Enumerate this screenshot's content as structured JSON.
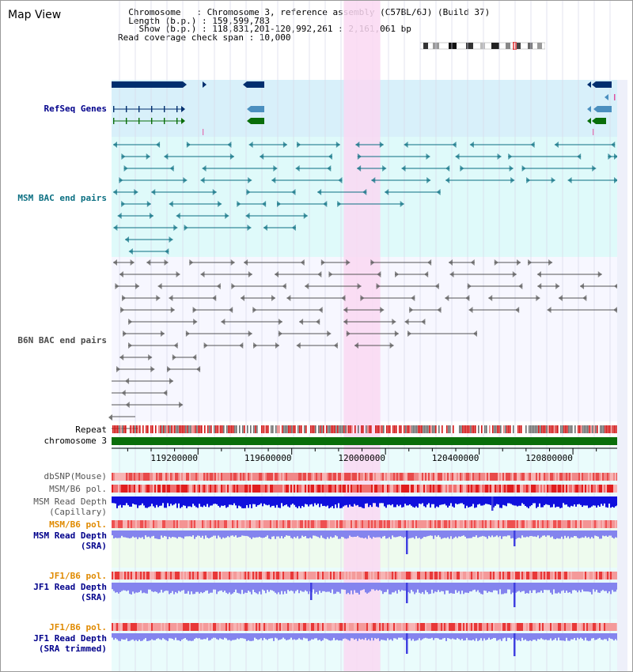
{
  "app": {
    "title": "Map View"
  },
  "info": {
    "line1": "  Chromosome   : Chromosome 3, reference assembly (C57BL/6J) (Build 37)",
    "line2": "  Length (b.p.) : 159,599,783",
    "line3": "    Show (b.p.) : 118,831,201-120,992,261 : 2,161,061 bp",
    "line4": "Read coverage check span : 10,000"
  },
  "tracks": {
    "refseq": "RefSeq Genes",
    "msm_bac": "MSM BAC end pairs",
    "b6n_bac": "B6N BAC end pairs",
    "repeat": "Repeat",
    "chromosome": "chromosome 3",
    "dbsnp": "dbSNP(Mouse)",
    "msm_b6_pol": "MSM/B6 pol.",
    "msm_read_cap_1": "MSM Read Depth",
    "msm_read_cap_2": "(Capillary)",
    "msm_b6_pol_sra": "MSM/B6 pol.",
    "msm_read_sra_1": "MSM Read Depth",
    "msm_read_sra_2": "(SRA)",
    "jf1_b6_pol": "JF1/B6 pol.",
    "jf1_read_sra_1": "JF1 Read Depth",
    "jf1_read_sra_2": "(SRA)",
    "jf1_b6_pol_trim": "JF1/B6 pol.",
    "jf1_read_trim_1": "JF1 Read Depth",
    "jf1_read_trim_2": "(SRA trimmed)"
  },
  "axis": {
    "ticks": [
      {
        "label": "119200000",
        "value": 119200000
      },
      {
        "label": "119600000",
        "value": 119600000
      },
      {
        "label": "120000000",
        "value": 120000000
      },
      {
        "label": "120400000",
        "value": 120400000
      },
      {
        "label": "120800000",
        "value": 120800000
      }
    ]
  },
  "highlight": {
    "start": 119822000,
    "end": 119978000
  },
  "colors": {
    "refseq_bg": "#d8f0fa",
    "msm_bg": "#dffafa",
    "b6n_bg": "#f7f7ff",
    "highlight": "#fad8f2",
    "refseq_dark": "#002e6e",
    "refseq_mid": "#4b8fbf",
    "refseq_green": "#0a6e0a",
    "msm_line": "#0b6f82",
    "b6n_line": "#555555",
    "chrom_bar": "#0a6e0a",
    "depth_blue": "#1010dd",
    "depth_light": "#8484ee"
  }
}
